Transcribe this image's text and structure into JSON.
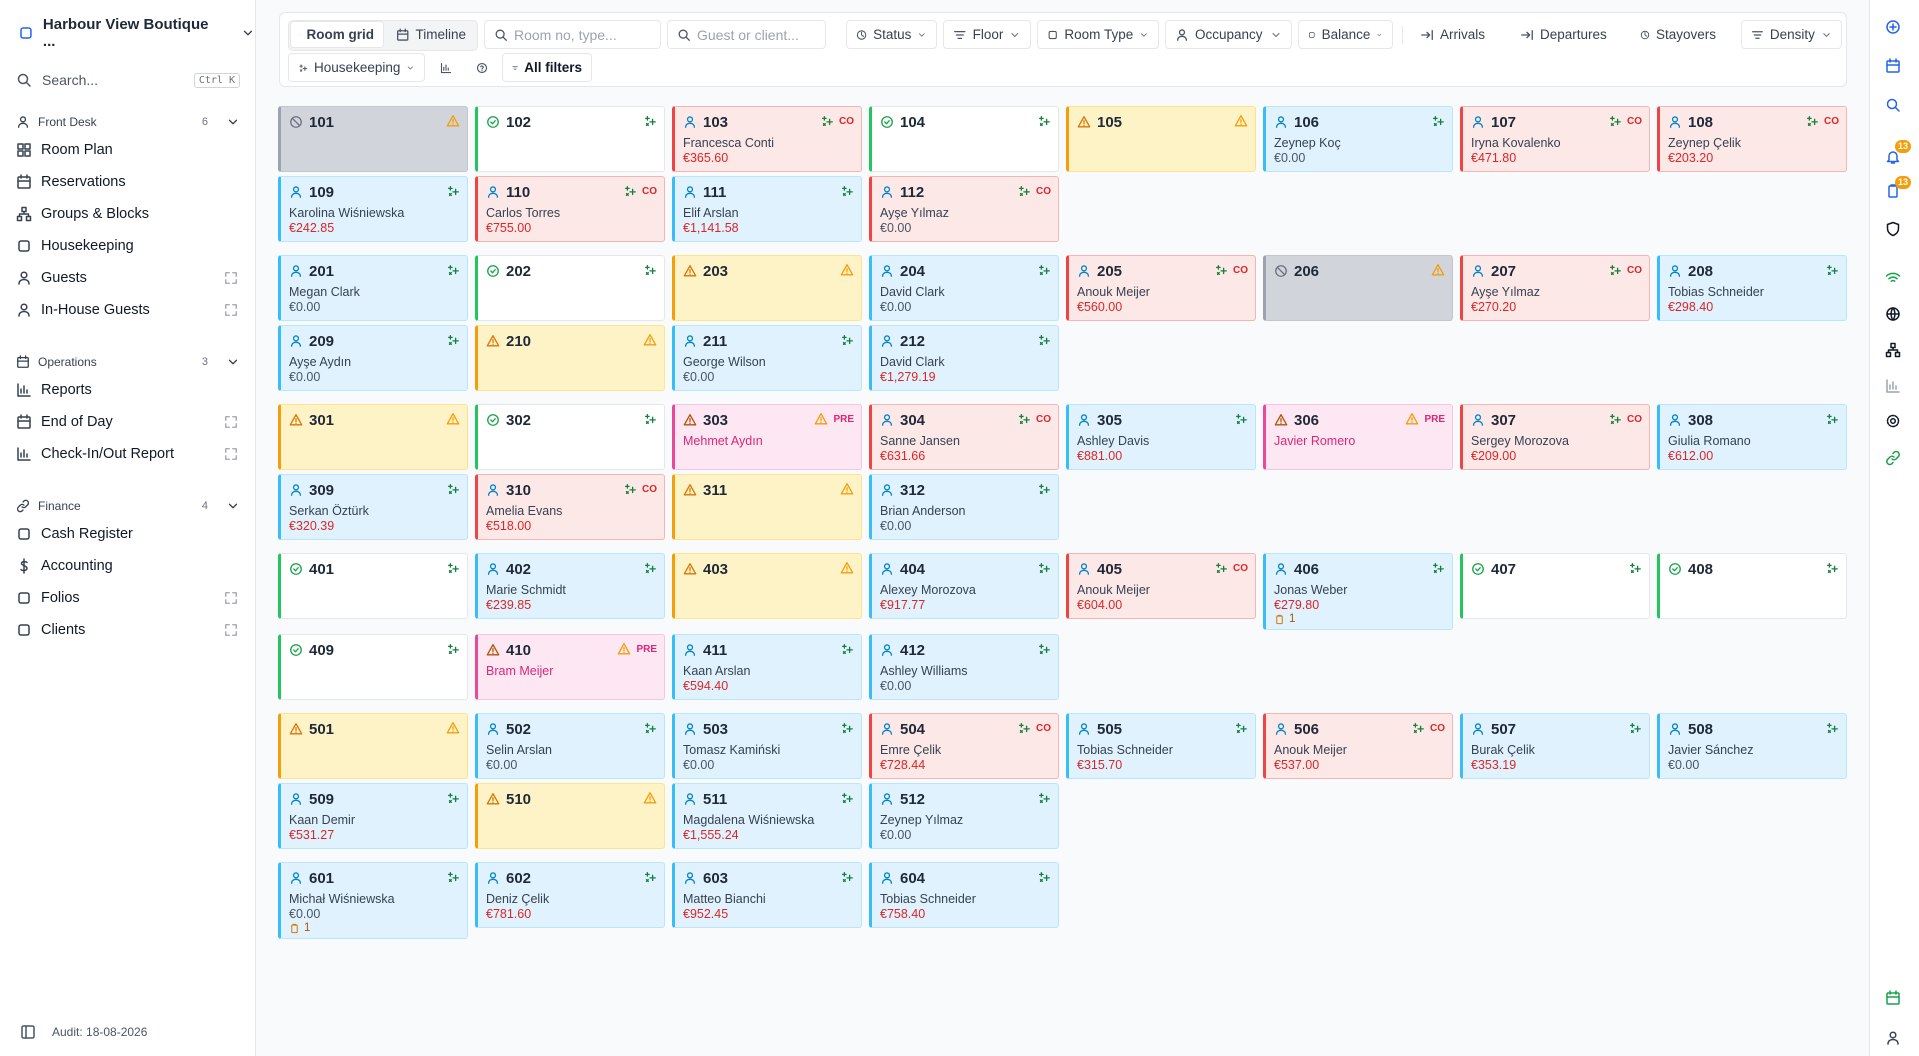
{
  "sidebar": {
    "hotel": "Harbour View Boutique ...",
    "search": "Search...",
    "shortcut": "Ctrl K",
    "sections": [
      {
        "title": "Front Desk",
        "count": 6,
        "items": [
          {
            "label": "Room Plan"
          },
          {
            "label": "Reservations"
          },
          {
            "label": "Groups & Blocks"
          },
          {
            "label": "Housekeeping"
          },
          {
            "label": "Guests",
            "popout": true
          },
          {
            "label": "In-House Guests",
            "popout": true
          }
        ]
      },
      {
        "title": "Operations",
        "count": 3,
        "items": [
          {
            "label": "Reports"
          },
          {
            "label": "End of Day",
            "popout": true
          },
          {
            "label": "Check-In/Out Report",
            "popout": true
          }
        ]
      },
      {
        "title": "Finance",
        "count": 4,
        "items": [
          {
            "label": "Cash Register"
          },
          {
            "label": "Accounting"
          },
          {
            "label": "Folios",
            "popout": true
          },
          {
            "label": "Clients",
            "popout": true
          }
        ]
      }
    ],
    "audit": "Audit: 18-08-2026"
  },
  "toolbar": {
    "views": [
      "Room grid",
      "Timeline"
    ],
    "searches": [
      "Room no, type...",
      "Guest or client..."
    ],
    "filters": [
      "Status",
      "Floor",
      "Room Type",
      "Occupancy",
      "Balance"
    ],
    "movements": [
      "Arrivals",
      "Departures",
      "Stayovers"
    ],
    "density": "Density",
    "housekeeping": "Housekeeping",
    "all_filters": "All filters"
  },
  "rail": {
    "badges": [
      13,
      13
    ]
  },
  "floors": [
    {
      "rooms": [
        {
          "number": 101,
          "state": "blocked"
        },
        {
          "number": 102,
          "state": "clean"
        },
        {
          "number": 103,
          "state": "checkout",
          "tag": "CO",
          "guest": "Francesca Conti",
          "balance": "€365.60"
        },
        {
          "number": 104,
          "state": "clean"
        },
        {
          "number": 105,
          "state": "dirty"
        },
        {
          "number": 106,
          "state": "occupied",
          "guest": "Zeynep Koç",
          "balance": "€0.00"
        },
        {
          "number": 107,
          "state": "checkout",
          "tag": "CO",
          "guest": "Iryna Kovalenko",
          "balance": "€471.80"
        },
        {
          "number": 108,
          "state": "checkout",
          "tag": "CO",
          "guest": "Zeynep Çelik",
          "balance": "€203.20"
        },
        {
          "number": 109,
          "state": "occupied",
          "guest": "Karolina Wiśniewska",
          "balance": "€242.85"
        },
        {
          "number": 110,
          "state": "checkout",
          "tag": "CO",
          "guest": "Carlos Torres",
          "balance": "€755.00"
        },
        {
          "number": 111,
          "state": "occupied",
          "guest": "Elif Arslan",
          "balance": "€1,141.58"
        },
        {
          "number": 112,
          "state": "checkout",
          "tag": "CO",
          "guest": "Ayşe Yılmaz",
          "balance": "€0.00"
        }
      ]
    },
    {
      "rooms": [
        {
          "number": 201,
          "state": "occupied",
          "guest": "Megan Clark",
          "balance": "€0.00"
        },
        {
          "number": 202,
          "state": "clean"
        },
        {
          "number": 203,
          "state": "dirty"
        },
        {
          "number": 204,
          "state": "occupied",
          "guest": "David Clark",
          "balance": "€0.00"
        },
        {
          "number": 205,
          "state": "checkout",
          "tag": "CO",
          "guest": "Anouk Meijer",
          "balance": "€560.00"
        },
        {
          "number": 206,
          "state": "blocked"
        },
        {
          "number": 207,
          "state": "checkout",
          "tag": "CO",
          "guest": "Ayşe Yılmaz",
          "balance": "€270.20"
        },
        {
          "number": 208,
          "state": "occupied",
          "guest": "Tobias Schneider",
          "balance": "€298.40"
        },
        {
          "number": 209,
          "state": "occupied",
          "guest": "Ayşe Aydın",
          "balance": "€0.00"
        },
        {
          "number": 210,
          "state": "dirty"
        },
        {
          "number": 211,
          "state": "occupied",
          "guest": "George Wilson",
          "balance": "€0.00"
        },
        {
          "number": 212,
          "state": "occupied",
          "guest": "David Clark",
          "balance": "€1,279.19"
        }
      ]
    },
    {
      "rooms": [
        {
          "number": 301,
          "state": "dirty"
        },
        {
          "number": 302,
          "state": "clean"
        },
        {
          "number": 303,
          "state": "pre",
          "tag": "PRE",
          "guest": "Mehmet Aydın"
        },
        {
          "number": 304,
          "state": "checkout",
          "tag": "CO",
          "guest": "Sanne Jansen",
          "balance": "€631.66"
        },
        {
          "number": 305,
          "state": "occupied",
          "guest": "Ashley Davis",
          "balance": "€881.00"
        },
        {
          "number": 306,
          "state": "pre",
          "tag": "PRE",
          "guest": "Javier Romero"
        },
        {
          "number": 307,
          "state": "checkout",
          "tag": "CO",
          "guest": "Sergey Morozova",
          "balance": "€209.00"
        },
        {
          "number": 308,
          "state": "occupied",
          "guest": "Giulia Romano",
          "balance": "€612.00"
        },
        {
          "number": 309,
          "state": "occupied",
          "guest": "Serkan Öztürk",
          "balance": "€320.39"
        },
        {
          "number": 310,
          "state": "checkout",
          "tag": "CO",
          "guest": "Amelia Evans",
          "balance": "€518.00"
        },
        {
          "number": 311,
          "state": "dirty"
        },
        {
          "number": 312,
          "state": "occupied",
          "guest": "Brian Anderson",
          "balance": "€0.00"
        }
      ]
    },
    {
      "rooms": [
        {
          "number": 401,
          "state": "clean"
        },
        {
          "number": 402,
          "state": "occupied",
          "guest": "Marie Schmidt",
          "balance": "€239.85"
        },
        {
          "number": 403,
          "state": "dirty"
        },
        {
          "number": 404,
          "state": "occupied",
          "guest": "Alexey Morozova",
          "balance": "€917.77"
        },
        {
          "number": 405,
          "state": "checkout",
          "tag": "CO",
          "guest": "Anouk Meijer",
          "balance": "€604.00"
        },
        {
          "number": 406,
          "state": "occupied",
          "guest": "Jonas Weber",
          "balance": "€279.80",
          "note": 1
        },
        {
          "number": 407,
          "state": "clean"
        },
        {
          "number": 408,
          "state": "clean"
        },
        {
          "number": 409,
          "state": "clean"
        },
        {
          "number": 410,
          "state": "pre",
          "tag": "PRE",
          "guest": "Bram Meijer"
        },
        {
          "number": 411,
          "state": "occupied",
          "guest": "Kaan Arslan",
          "balance": "€594.40"
        },
        {
          "number": 412,
          "state": "occupied",
          "guest": "Ashley Williams",
          "balance": "€0.00"
        }
      ]
    },
    {
      "rooms": [
        {
          "number": 501,
          "state": "dirty"
        },
        {
          "number": 502,
          "state": "occupied",
          "guest": "Selin Arslan",
          "balance": "€0.00"
        },
        {
          "number": 503,
          "state": "occupied",
          "guest": "Tomasz Kamiński",
          "balance": "€0.00"
        },
        {
          "number": 504,
          "state": "checkout",
          "tag": "CO",
          "guest": "Emre Çelik",
          "balance": "€728.44"
        },
        {
          "number": 505,
          "state": "occupied",
          "guest": "Tobias Schneider",
          "balance": "€315.70"
        },
        {
          "number": 506,
          "state": "checkout",
          "tag": "CO",
          "guest": "Anouk Meijer",
          "balance": "€537.00"
        },
        {
          "number": 507,
          "state": "occupied",
          "guest": "Burak Çelik",
          "balance": "€353.19"
        },
        {
          "number": 508,
          "state": "occupied",
          "guest": "Javier Sánchez",
          "balance": "€0.00"
        },
        {
          "number": 509,
          "state": "occupied",
          "guest": "Kaan Demir",
          "balance": "€531.27"
        },
        {
          "number": 510,
          "state": "dirty"
        },
        {
          "number": 511,
          "state": "occupied",
          "guest": "Magdalena Wiśniewska",
          "balance": "€1,555.24"
        },
        {
          "number": 512,
          "state": "occupied",
          "guest": "Zeynep Yılmaz",
          "balance": "€0.00"
        }
      ]
    },
    {
      "rooms": [
        {
          "number": 601,
          "state": "occupied",
          "guest": "Michał Wiśniewska",
          "balance": "€0.00",
          "note": 1
        },
        {
          "number": 602,
          "state": "occupied",
          "guest": "Deniz Çelik",
          "balance": "€781.60"
        },
        {
          "number": 603,
          "state": "occupied",
          "guest": "Matteo Bianchi",
          "balance": "€952.45"
        },
        {
          "number": 604,
          "state": "occupied",
          "guest": "Tobias Schneider",
          "balance": "€758.40"
        }
      ]
    }
  ]
}
